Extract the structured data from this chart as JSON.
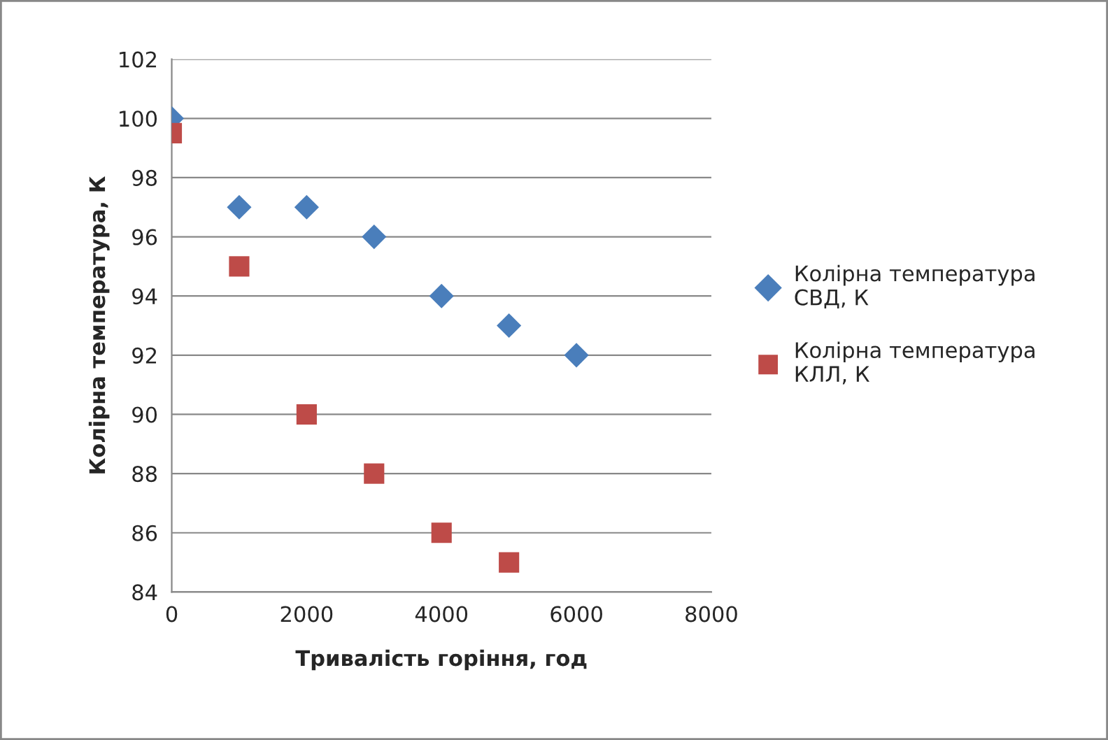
{
  "chart_data": {
    "type": "scatter",
    "xlabel": "Тривалість горіння, год",
    "ylabel": "Колірна температура, К",
    "xlim": [
      0,
      8000
    ],
    "xticks": [
      0,
      2000,
      4000,
      6000,
      8000
    ],
    "ylim": [
      84,
      102
    ],
    "yticks": [
      84,
      86,
      88,
      90,
      92,
      94,
      96,
      98,
      100,
      102
    ],
    "grid": "y",
    "legend": "right",
    "series": [
      {
        "name": "Колірна температура СВД, К",
        "color": "#4a7ebb",
        "marker": "diamond",
        "x": [
          0,
          1000,
          2000,
          3000,
          4000,
          5000,
          6000
        ],
        "values": [
          100,
          97,
          97,
          96,
          94,
          93,
          92
        ]
      },
      {
        "name": "Колірна температура КЛЛ, К",
        "color": "#be4b48",
        "marker": "square",
        "x": [
          0,
          1000,
          2000,
          3000,
          4000,
          5000
        ],
        "values": [
          99.5,
          95,
          90,
          88,
          86,
          85
        ]
      }
    ]
  }
}
